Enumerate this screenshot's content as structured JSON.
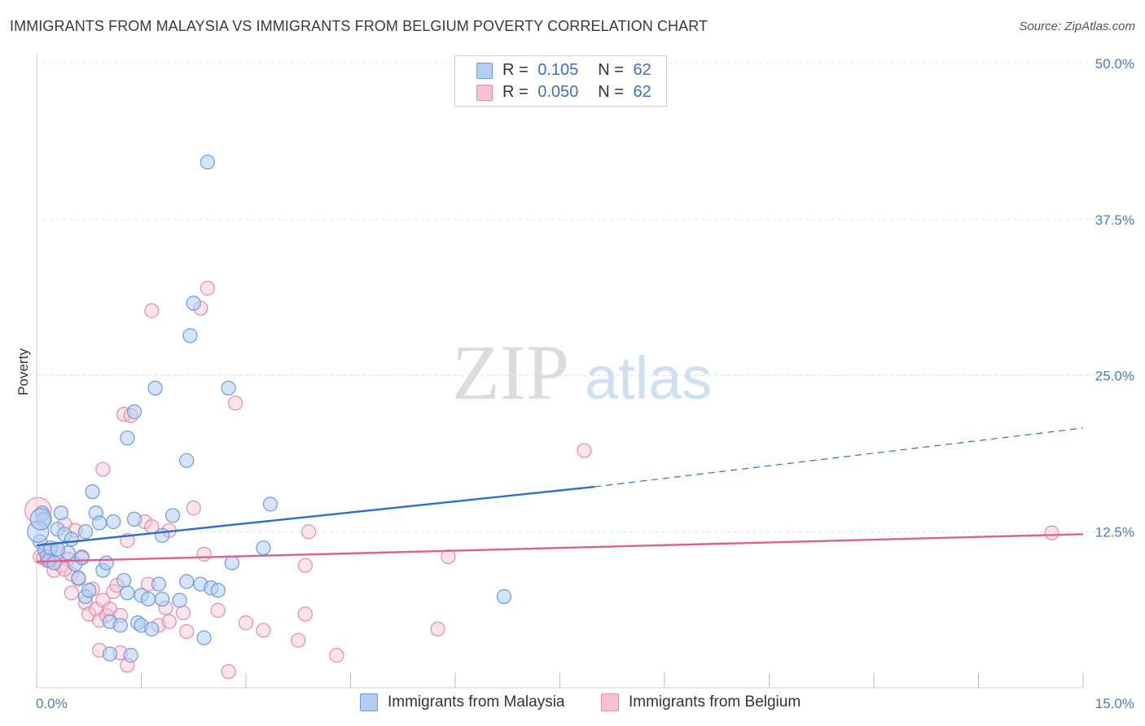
{
  "title": "IMMIGRANTS FROM MALAYSIA VS IMMIGRANTS FROM BELGIUM POVERTY CORRELATION CHART",
  "source": "Source: ZipAtlas.com",
  "watermark": {
    "zip": "ZIP",
    "atlas": "atlas"
  },
  "legend": {
    "r_label": "R =",
    "n_label": "N =",
    "series1": {
      "r": "0.105",
      "n": "62"
    },
    "series2": {
      "r": "0.050",
      "n": "62"
    }
  },
  "colors": {
    "blue": "#6b9be0",
    "blue_fill": "#b3cdf3",
    "blue_line": "#2e6fcc",
    "pink": "#e88aa8",
    "pink_fill": "#f7c3d3",
    "pink_line": "#e0608c",
    "tick": "#4a7cc9"
  },
  "chart_data": {
    "type": "scatter",
    "title": "IMMIGRANTS FROM MALAYSIA VS IMMIGRANTS FROM BELGIUM POVERTY CORRELATION CHART",
    "xlabel": "",
    "ylabel": "Poverty",
    "xlim": [
      0,
      15
    ],
    "ylim": [
      0,
      50
    ],
    "x_tick_labels": [
      "0.0%",
      "15.0%"
    ],
    "y_ticks": [
      12.5,
      25.0,
      37.5,
      50.0
    ],
    "y_tick_labels": [
      "12.5%",
      "25.0%",
      "37.5%",
      "50.0%"
    ],
    "grid": true,
    "series": [
      {
        "name": "Immigrants from Malaysia",
        "color": "#6b9be0",
        "trend": {
          "x": [
            0,
            8.0,
            15
          ],
          "y": [
            11.4,
            16.1,
            20.8
          ],
          "solid_until": 8.0
        },
        "points": [
          [
            0.05,
            11.7
          ],
          [
            0.08,
            14.0
          ],
          [
            0.1,
            13.5
          ],
          [
            0.12,
            11.0
          ],
          [
            0.15,
            10.5
          ],
          [
            0.18,
            10.2
          ],
          [
            0.2,
            11.2
          ],
          [
            0.25,
            10.0
          ],
          [
            0.3,
            12.7
          ],
          [
            0.35,
            14.0
          ],
          [
            0.4,
            12.3
          ],
          [
            0.45,
            10.8
          ],
          [
            0.5,
            11.9
          ],
          [
            0.55,
            9.9
          ],
          [
            0.6,
            8.8
          ],
          [
            0.65,
            10.4
          ],
          [
            0.7,
            12.5
          ],
          [
            0.7,
            7.3
          ],
          [
            0.75,
            7.8
          ],
          [
            0.8,
            15.7
          ],
          [
            0.85,
            14.0
          ],
          [
            0.9,
            13.2
          ],
          [
            0.95,
            9.4
          ],
          [
            1.0,
            10.0
          ],
          [
            1.05,
            5.3
          ],
          [
            1.05,
            2.7
          ],
          [
            1.1,
            13.3
          ],
          [
            1.2,
            5.0
          ],
          [
            1.25,
            8.6
          ],
          [
            1.3,
            7.6
          ],
          [
            1.35,
            2.6
          ],
          [
            1.3,
            20.0
          ],
          [
            1.4,
            13.5
          ],
          [
            1.4,
            22.1
          ],
          [
            1.45,
            5.2
          ],
          [
            1.5,
            5.0
          ],
          [
            1.5,
            7.4
          ],
          [
            1.6,
            7.1
          ],
          [
            1.65,
            4.7
          ],
          [
            1.7,
            24.0
          ],
          [
            1.75,
            8.3
          ],
          [
            1.8,
            12.2
          ],
          [
            1.8,
            7.1
          ],
          [
            1.95,
            13.8
          ],
          [
            2.05,
            7.0
          ],
          [
            2.15,
            18.2
          ],
          [
            2.15,
            8.5
          ],
          [
            2.2,
            28.2
          ],
          [
            2.25,
            30.8
          ],
          [
            2.35,
            8.3
          ],
          [
            2.4,
            4.0
          ],
          [
            2.5,
            8.0
          ],
          [
            2.45,
            42.1
          ],
          [
            2.6,
            7.8
          ],
          [
            2.75,
            24.0
          ],
          [
            2.8,
            10.0
          ],
          [
            3.25,
            11.2
          ],
          [
            3.35,
            14.7
          ],
          [
            6.7,
            7.3
          ],
          [
            0.02,
            12.5
          ],
          [
            0.06,
            13.5
          ],
          [
            0.3,
            11.1
          ]
        ]
      },
      {
        "name": "Immigrants from Belgium",
        "color": "#e88aa8",
        "trend": {
          "x": [
            0,
            15
          ],
          "y": [
            10.1,
            12.3
          ]
        },
        "points": [
          [
            0.02,
            14.2
          ],
          [
            0.05,
            10.5
          ],
          [
            0.1,
            10.4
          ],
          [
            0.2,
            11.0
          ],
          [
            0.25,
            9.4
          ],
          [
            0.3,
            10.8
          ],
          [
            0.35,
            9.8
          ],
          [
            0.4,
            13.1
          ],
          [
            0.45,
            10.3
          ],
          [
            0.5,
            9.1
          ],
          [
            0.5,
            7.6
          ],
          [
            0.55,
            12.6
          ],
          [
            0.6,
            8.7
          ],
          [
            0.65,
            10.5
          ],
          [
            0.7,
            6.8
          ],
          [
            0.75,
            5.9
          ],
          [
            0.8,
            7.9
          ],
          [
            0.85,
            6.3
          ],
          [
            0.9,
            5.4
          ],
          [
            0.9,
            3.0
          ],
          [
            0.95,
            7.0
          ],
          [
            0.95,
            17.5
          ],
          [
            1.0,
            5.8
          ],
          [
            1.05,
            6.3
          ],
          [
            1.1,
            7.7
          ],
          [
            1.15,
            8.2
          ],
          [
            1.2,
            5.8
          ],
          [
            1.2,
            2.8
          ],
          [
            1.25,
            21.9
          ],
          [
            1.3,
            1.8
          ],
          [
            1.3,
            11.8
          ],
          [
            1.35,
            21.8
          ],
          [
            1.55,
            13.3
          ],
          [
            1.6,
            8.3
          ],
          [
            1.65,
            30.2
          ],
          [
            1.65,
            12.9
          ],
          [
            1.75,
            5.0
          ],
          [
            1.85,
            6.4
          ],
          [
            1.9,
            5.3
          ],
          [
            1.9,
            12.6
          ],
          [
            2.1,
            6.0
          ],
          [
            2.15,
            4.5
          ],
          [
            2.25,
            14.4
          ],
          [
            2.35,
            30.4
          ],
          [
            2.4,
            10.7
          ],
          [
            2.45,
            32.0
          ],
          [
            2.6,
            6.2
          ],
          [
            2.75,
            1.3
          ],
          [
            2.85,
            22.8
          ],
          [
            3.0,
            5.2
          ],
          [
            3.25,
            4.6
          ],
          [
            3.75,
            3.8
          ],
          [
            3.85,
            9.8
          ],
          [
            3.85,
            5.9
          ],
          [
            3.9,
            12.5
          ],
          [
            4.3,
            2.6
          ],
          [
            5.75,
            4.7
          ],
          [
            5.9,
            10.5
          ],
          [
            7.85,
            19.0
          ],
          [
            14.55,
            12.4
          ],
          [
            0.15,
            10.2
          ],
          [
            0.4,
            9.5
          ]
        ]
      }
    ]
  },
  "bottom_legend": [
    "Immigrants from Malaysia",
    "Immigrants from Belgium"
  ]
}
